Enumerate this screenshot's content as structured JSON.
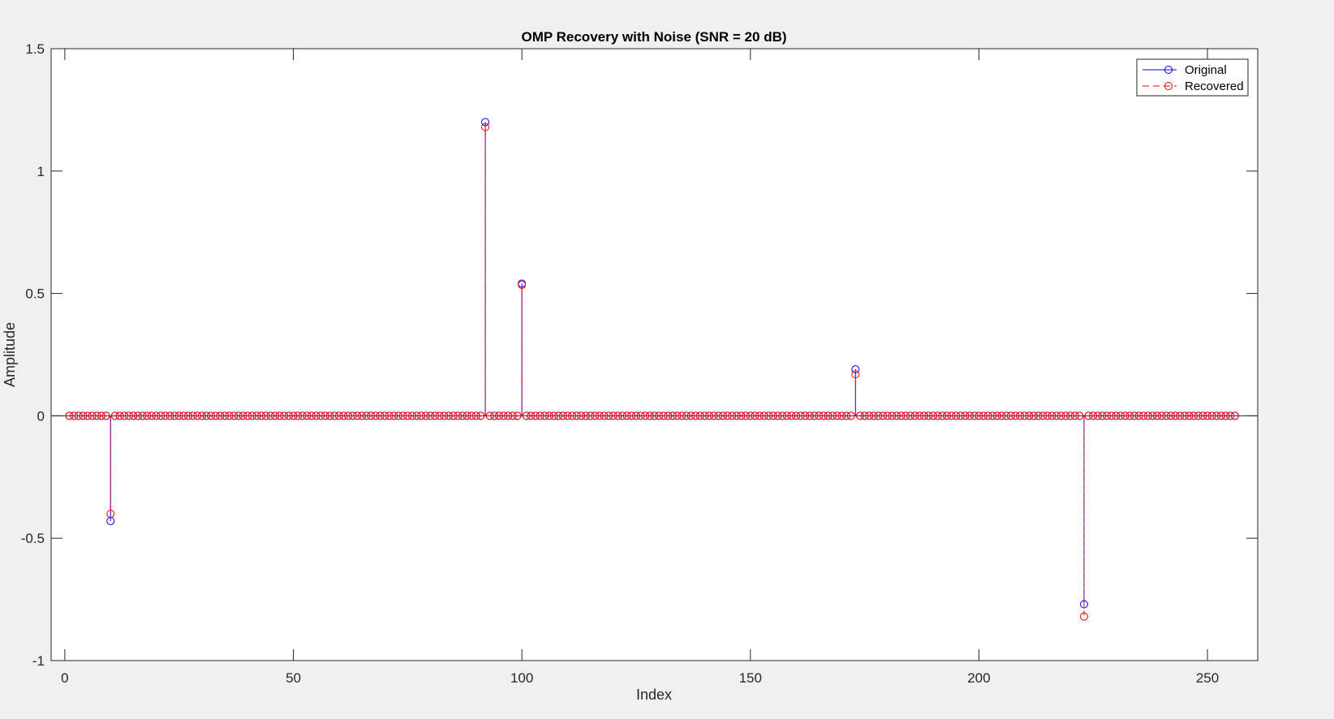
{
  "chart_data": {
    "type": "stem",
    "title": "OMP Recovery with Noise (SNR = 20 dB)",
    "xlabel": "Index",
    "ylabel": "Amplitude",
    "xlim": [
      -3,
      261
    ],
    "ylim": [
      -1,
      1.5
    ],
    "xticks": [
      0,
      50,
      100,
      150,
      200,
      250
    ],
    "xtick_labels": [
      "0",
      "50",
      "100",
      "150",
      "200",
      "250"
    ],
    "yticks": [
      -1,
      -0.5,
      0,
      0.5,
      1,
      1.5
    ],
    "ytick_labels": [
      "-1",
      "-0.5",
      "0",
      "0.5",
      "1",
      "1.5"
    ],
    "n_points": 256,
    "x_start": 1,
    "legend_location": "top-right",
    "grid": false,
    "series": [
      {
        "name": "Original",
        "color": "#0000ff",
        "line_style": "solid",
        "marker": "circle",
        "nonzero": [
          {
            "x": 10,
            "y": -0.43
          },
          {
            "x": 92,
            "y": 1.2
          },
          {
            "x": 100,
            "y": 0.54
          },
          {
            "x": 173,
            "y": 0.19
          },
          {
            "x": 223,
            "y": -0.77
          }
        ]
      },
      {
        "name": "Recovered",
        "color": "#ff0000",
        "line_style": "dashed",
        "marker": "circle",
        "nonzero": [
          {
            "x": 10,
            "y": -0.4
          },
          {
            "x": 92,
            "y": 1.18
          },
          {
            "x": 100,
            "y": 0.535
          },
          {
            "x": 173,
            "y": 0.17
          },
          {
            "x": 223,
            "y": -0.82
          }
        ]
      }
    ]
  }
}
